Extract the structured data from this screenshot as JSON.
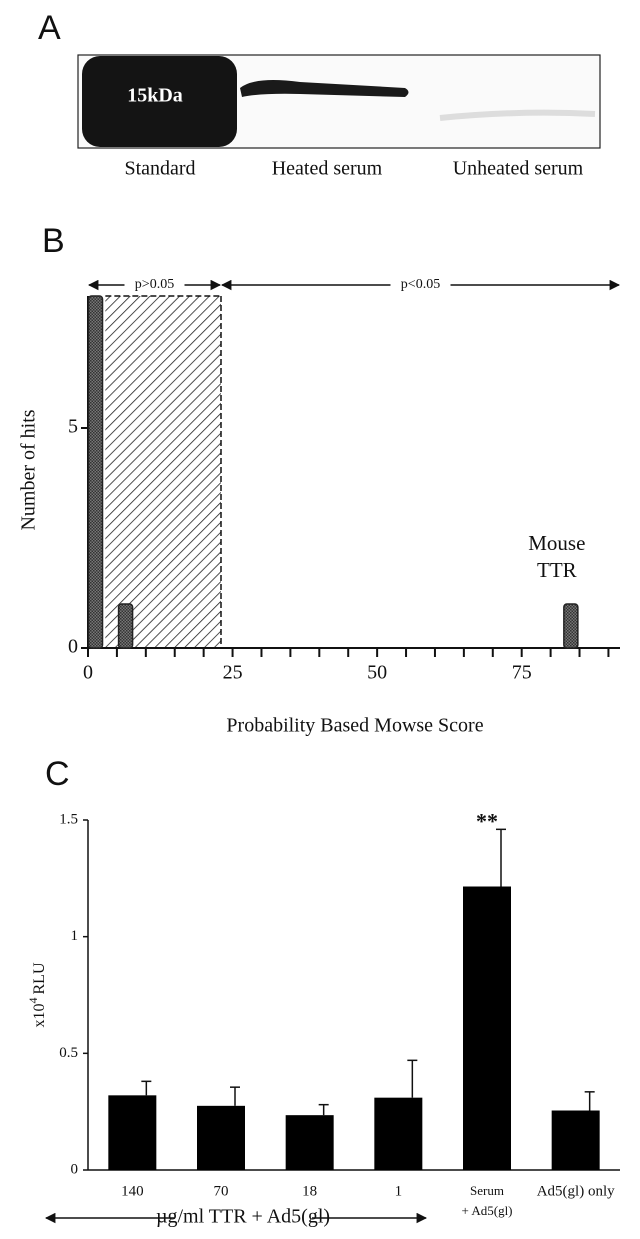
{
  "panel_a": {
    "letter": "A",
    "marker_label": "15kDa",
    "lanes": [
      "Standard",
      "Heated serum",
      "Unheated serum"
    ]
  },
  "chart_data": [
    {
      "type": "bar",
      "letter": "B",
      "xlabel": "Probability Based Mowse Score",
      "ylabel": "Number of hits",
      "x": [
        1.3,
        6.5,
        83.5
      ],
      "values": [
        8,
        1,
        1
      ],
      "color": "#555555",
      "xlim": [
        0,
        92
      ],
      "ylim": [
        0,
        8
      ],
      "xticks": [
        0,
        25,
        50,
        75
      ],
      "yticks": [
        0,
        5
      ],
      "minor_xticks": [
        5,
        10,
        15,
        20,
        30,
        35,
        40,
        45,
        55,
        60,
        65,
        70,
        80,
        85,
        90
      ],
      "shaded_region": [
        3,
        23
      ],
      "region_labels": [
        "p>0.05",
        "p<0.05"
      ],
      "annotation": [
        "Mouse",
        "TTR"
      ]
    },
    {
      "type": "bar",
      "letter": "C",
      "ylabel": {
        "base": "x10",
        "exponent": "4",
        "unit": "RLU"
      },
      "categories": [
        [
          "140"
        ],
        [
          "70"
        ],
        [
          "18"
        ],
        [
          "1"
        ],
        [
          "Serum",
          "+ Ad5(gl)"
        ],
        [
          "Ad5(gl) only"
        ]
      ],
      "values": [
        0.32,
        0.275,
        0.235,
        0.31,
        1.215,
        0.255
      ],
      "errors": [
        0.06,
        0.08,
        0.045,
        0.16,
        0.245,
        0.08
      ],
      "color": "#000000",
      "ylim": [
        0,
        1.5
      ],
      "yticks": [
        0,
        0.5,
        1,
        1.5
      ],
      "significance": {
        "index": 4,
        "label": "**"
      },
      "group_label": "µg/ml TTR + Ad5(gl)"
    }
  ]
}
